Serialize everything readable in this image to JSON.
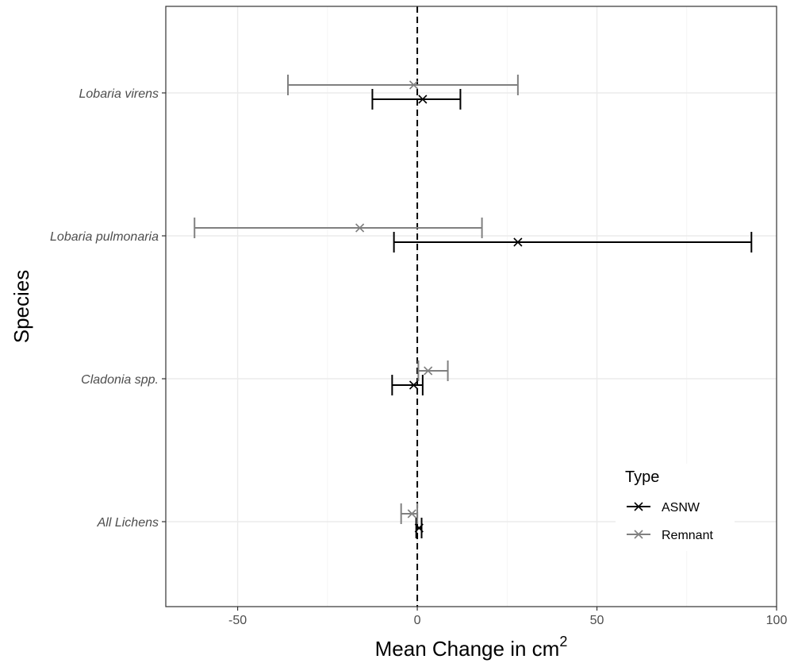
{
  "chart_data": {
    "type": "errorbar",
    "xlabel": "Mean Change in cm",
    "xlabel_superscript": "2",
    "ylabel": "Species",
    "categories": [
      "All Lichens",
      "Cladonia spp.",
      "Lobaria pulmonaria",
      "Lobaria virens"
    ],
    "xlim": [
      -70,
      100
    ],
    "xticks": [
      -50,
      0,
      50,
      100
    ],
    "xtick_labels": [
      "-50",
      "0",
      "50",
      "100"
    ],
    "reference_line": {
      "x": 0,
      "style": "dashed"
    },
    "grid": true,
    "series": [
      {
        "name": "ASNW",
        "color": "#000000",
        "points": [
          {
            "category": "All Lichens",
            "mean": 0.5,
            "lower": -0.3,
            "upper": 1.2
          },
          {
            "category": "Cladonia spp.",
            "mean": -1,
            "lower": -7,
            "upper": 1.5
          },
          {
            "category": "Lobaria pulmonaria",
            "mean": 28,
            "lower": -6.5,
            "upper": 93
          },
          {
            "category": "Lobaria virens",
            "mean": 1.5,
            "lower": -12.5,
            "upper": 12
          }
        ]
      },
      {
        "name": "Remnant",
        "color": "#808080",
        "points": [
          {
            "category": "All Lichens",
            "mean": -1.5,
            "lower": -4.5,
            "upper": 0
          },
          {
            "category": "Cladonia spp.",
            "mean": 3,
            "lower": 0.3,
            "upper": 8.5
          },
          {
            "category": "Lobaria pulmonaria",
            "mean": -16,
            "lower": -62,
            "upper": 18
          },
          {
            "category": "Lobaria virens",
            "mean": -1,
            "lower": -36,
            "upper": 28
          }
        ]
      }
    ],
    "legend": {
      "title": "Type",
      "position": "bottom-right",
      "items": [
        {
          "label": "ASNW",
          "color": "#000000"
        },
        {
          "label": "Remnant",
          "color": "#808080"
        }
      ]
    }
  }
}
